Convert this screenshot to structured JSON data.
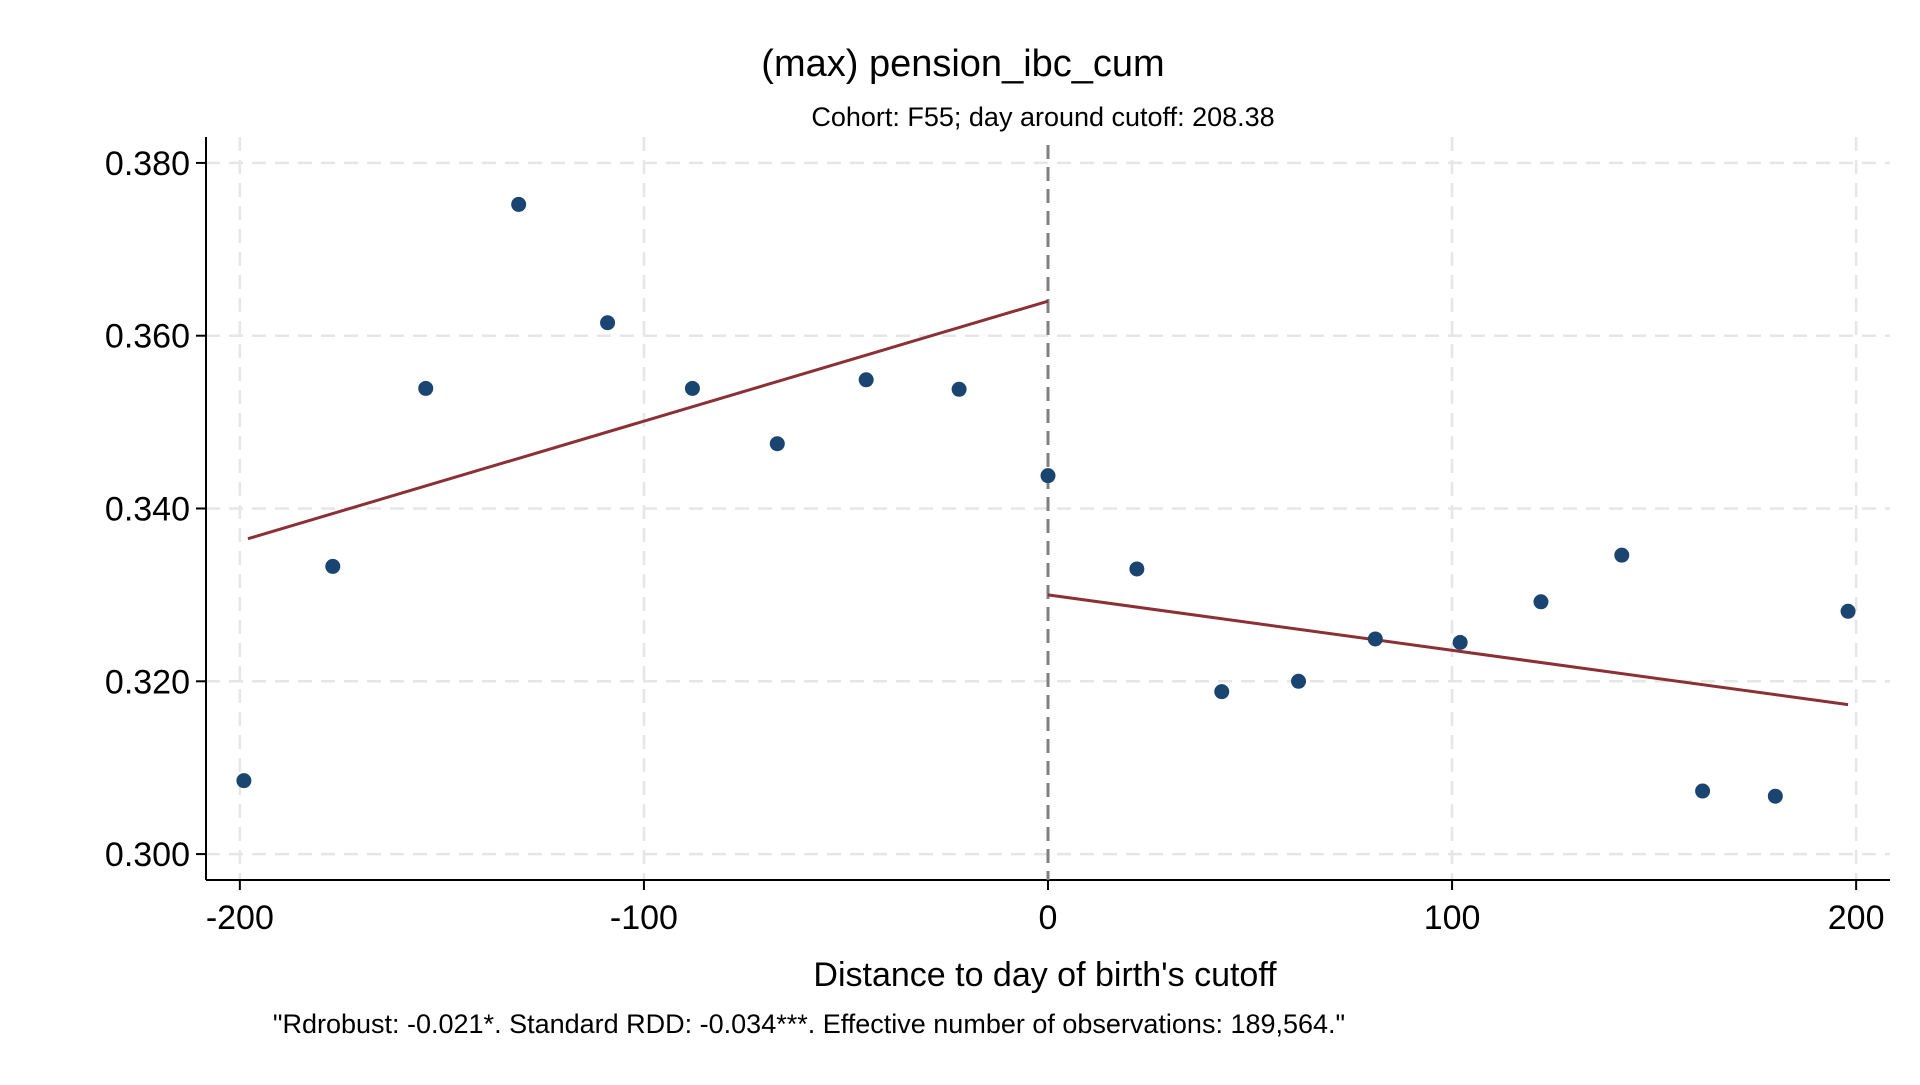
{
  "chart_data": {
    "type": "scatter",
    "title": "(max) pension_ibc_cum",
    "subtitle": "Cohort: F55; day around cutoff:  208.38",
    "xlabel": "Distance to day of birth's cutoff",
    "ylabel": "",
    "note": "\"Rdrobust: -0.021*. Standard RDD: -0.034***. Effective number of observations: 189,564.\"",
    "xlim": [
      -208.38,
      208.38
    ],
    "ylim": [
      0.297,
      0.383
    ],
    "x_ticks": [
      -200,
      -100,
      0,
      100,
      200
    ],
    "x_tick_labels": [
      "-200",
      "-100",
      "0",
      "100",
      "200"
    ],
    "y_ticks": [
      0.3,
      0.32,
      0.34,
      0.36,
      0.38
    ],
    "y_tick_labels": [
      "0.300",
      "0.320",
      "0.340",
      "0.360",
      "0.380"
    ],
    "grid": true,
    "cutoff_x": 0,
    "colors": {
      "points": "#1a4570",
      "fit_line": "#8b3035",
      "cutoff_line": "#808080",
      "grid": "#e6e6e6"
    },
    "series": [
      {
        "type": "scatter",
        "points": [
          {
            "x": -199,
            "y": 0.3085
          },
          {
            "x": -177,
            "y": 0.3333
          },
          {
            "x": -154,
            "y": 0.3539
          },
          {
            "x": -131,
            "y": 0.3752
          },
          {
            "x": -109,
            "y": 0.3615
          },
          {
            "x": -88,
            "y": 0.3539
          },
          {
            "x": -67,
            "y": 0.3475
          },
          {
            "x": -45,
            "y": 0.3549
          },
          {
            "x": -22,
            "y": 0.3538
          },
          {
            "x": 0,
            "y": 0.3438
          },
          {
            "x": 22,
            "y": 0.333
          },
          {
            "x": 43,
            "y": 0.3188
          },
          {
            "x": 62,
            "y": 0.32
          },
          {
            "x": 81,
            "y": 0.3249
          },
          {
            "x": 102,
            "y": 0.3245
          },
          {
            "x": 122,
            "y": 0.3292
          },
          {
            "x": 142,
            "y": 0.3346
          },
          {
            "x": 162,
            "y": 0.3073
          },
          {
            "x": 180,
            "y": 0.3067
          },
          {
            "x": 198,
            "y": 0.3281
          }
        ]
      },
      {
        "type": "line",
        "segments": [
          {
            "x0": -198,
            "y0": 0.3365,
            "x1": 0,
            "y1": 0.364
          },
          {
            "x0": 0,
            "y0": 0.33,
            "x1": 198,
            "y1": 0.3173
          }
        ]
      }
    ]
  }
}
